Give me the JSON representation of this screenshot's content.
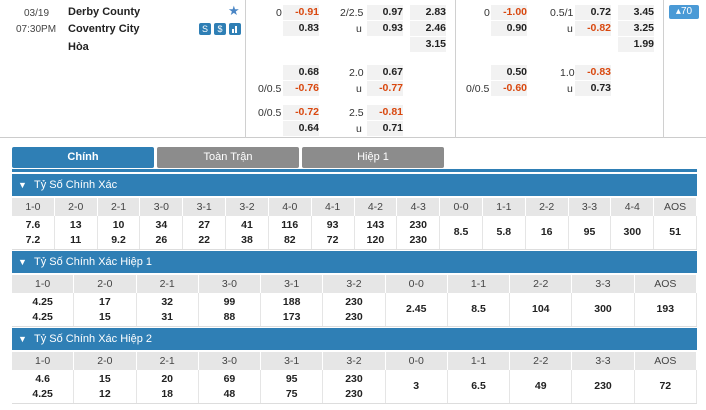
{
  "match": {
    "date": "03/19",
    "time": "07:30PM",
    "home": "Derby County",
    "away": "Coventry City",
    "draw": "Hòa",
    "more_count": "▴70",
    "icons": [
      "S",
      "$"
    ]
  },
  "odds": {
    "row1": {
      "h1": "0",
      "a1": "-0.91",
      "a2": "0.83",
      "ou": "2/2.5",
      "o1": "0.97",
      "o2": "u",
      "o3": "0.93",
      "x1": "2.83",
      "x2": "2.46",
      "x3": "3.15",
      "h1b": "0",
      "b1": "-1.00",
      "b2": "0.90",
      "oub": "0.5/1",
      "p1": "0.72",
      "p2": "u",
      "p3": "-0.82",
      "y1": "3.45",
      "y2": "3.25",
      "y3": "1.99"
    },
    "row2": {
      "a1": "0.68",
      "ou": "2.0",
      "o1": "0.67",
      "b1": "0.50",
      "oub": "1.0",
      "p1": "-0.83"
    },
    "row3": {
      "h": "0/0.5",
      "a1": "-0.76",
      "o2": "u",
      "o3": "-0.77",
      "hb": "0/0.5",
      "b1": "-0.60",
      "p2": "u",
      "p3": "0.73"
    },
    "row4": {
      "h": "0/0.5",
      "a1": "-0.72",
      "ou": "2.5",
      "o1": "-0.81",
      "a2": "0.64",
      "o2": "u",
      "o3": "0.71"
    }
  },
  "tabs": [
    "Chính",
    "Toàn Trận",
    "Hiệp 1"
  ],
  "sections": [
    {
      "title": "Tỷ Số Chính Xác",
      "headers": [
        "1-0",
        "2-0",
        "2-1",
        "3-0",
        "3-1",
        "3-2",
        "4-0",
        "4-1",
        "4-2",
        "4-3",
        "0-0",
        "1-1",
        "2-2",
        "3-3",
        "4-4",
        "AOS"
      ],
      "top": [
        "7.6",
        "13",
        "10",
        "34",
        "27",
        "41",
        "116",
        "93",
        "143",
        "230",
        "8.5",
        "5.8",
        "16",
        "95",
        "300",
        "51"
      ],
      "bottom": [
        "7.2",
        "11",
        "9.2",
        "26",
        "22",
        "38",
        "82",
        "72",
        "120",
        "230",
        "",
        "",
        "",
        "",
        "",
        ""
      ]
    },
    {
      "title": "Tỷ Số Chính Xác Hiệp 1",
      "headers": [
        "1-0",
        "2-0",
        "2-1",
        "3-0",
        "3-1",
        "3-2",
        "0-0",
        "1-1",
        "2-2",
        "3-3",
        "AOS"
      ],
      "top": [
        "4.25",
        "17",
        "32",
        "99",
        "188",
        "230",
        "2.45",
        "8.5",
        "104",
        "300",
        "193"
      ],
      "bottom": [
        "4.25",
        "15",
        "31",
        "88",
        "173",
        "230",
        "",
        "",
        "",
        "",
        ""
      ]
    },
    {
      "title": "Tỷ Số Chính Xác Hiệp 2",
      "headers": [
        "1-0",
        "2-0",
        "2-1",
        "3-0",
        "3-1",
        "3-2",
        "0-0",
        "1-1",
        "2-2",
        "3-3",
        "AOS"
      ],
      "top": [
        "4.6",
        "15",
        "20",
        "69",
        "95",
        "230",
        "3",
        "6.5",
        "49",
        "230",
        "72"
      ],
      "bottom": [
        "4.25",
        "12",
        "18",
        "48",
        "75",
        "230",
        "",
        "",
        "",
        "",
        ""
      ]
    }
  ]
}
